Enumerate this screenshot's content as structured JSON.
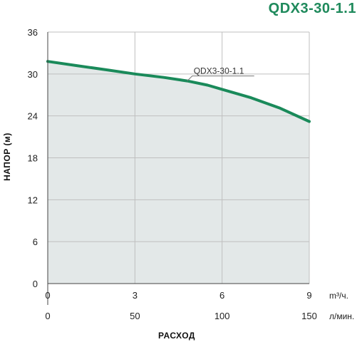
{
  "chart_data": {
    "type": "area",
    "title": "QDX3-30-1.1",
    "ylabel": "НАПОР (м)",
    "xlabel": "РАСХОД",
    "x_unit_primary": "m³/ч.",
    "x_unit_secondary": "л/мин.",
    "xlim": [
      0,
      9
    ],
    "ylim": [
      0,
      36
    ],
    "x_ticks": [
      "0",
      "3",
      "6",
      "9"
    ],
    "x_secondary_ticks": [
      "0",
      "50",
      "100",
      "150"
    ],
    "y_ticks": [
      "0",
      "6",
      "12",
      "18",
      "24",
      "30",
      "36"
    ],
    "grid": true,
    "series": [
      {
        "name": "QDX3-30-1.1",
        "x": [
          0,
          1,
          2,
          3,
          4,
          4.8,
          5.5,
          6,
          7,
          8,
          9
        ],
        "y": [
          31.8,
          31.2,
          30.6,
          30.0,
          29.5,
          29.0,
          28.4,
          27.8,
          26.6,
          25.1,
          23.2
        ]
      }
    ],
    "colors": {
      "line": "#1a8a5a",
      "fill": "#e3e8e8",
      "grid": "#bfbfbf",
      "axis": "#444444",
      "title": "#1f8a5c"
    }
  }
}
